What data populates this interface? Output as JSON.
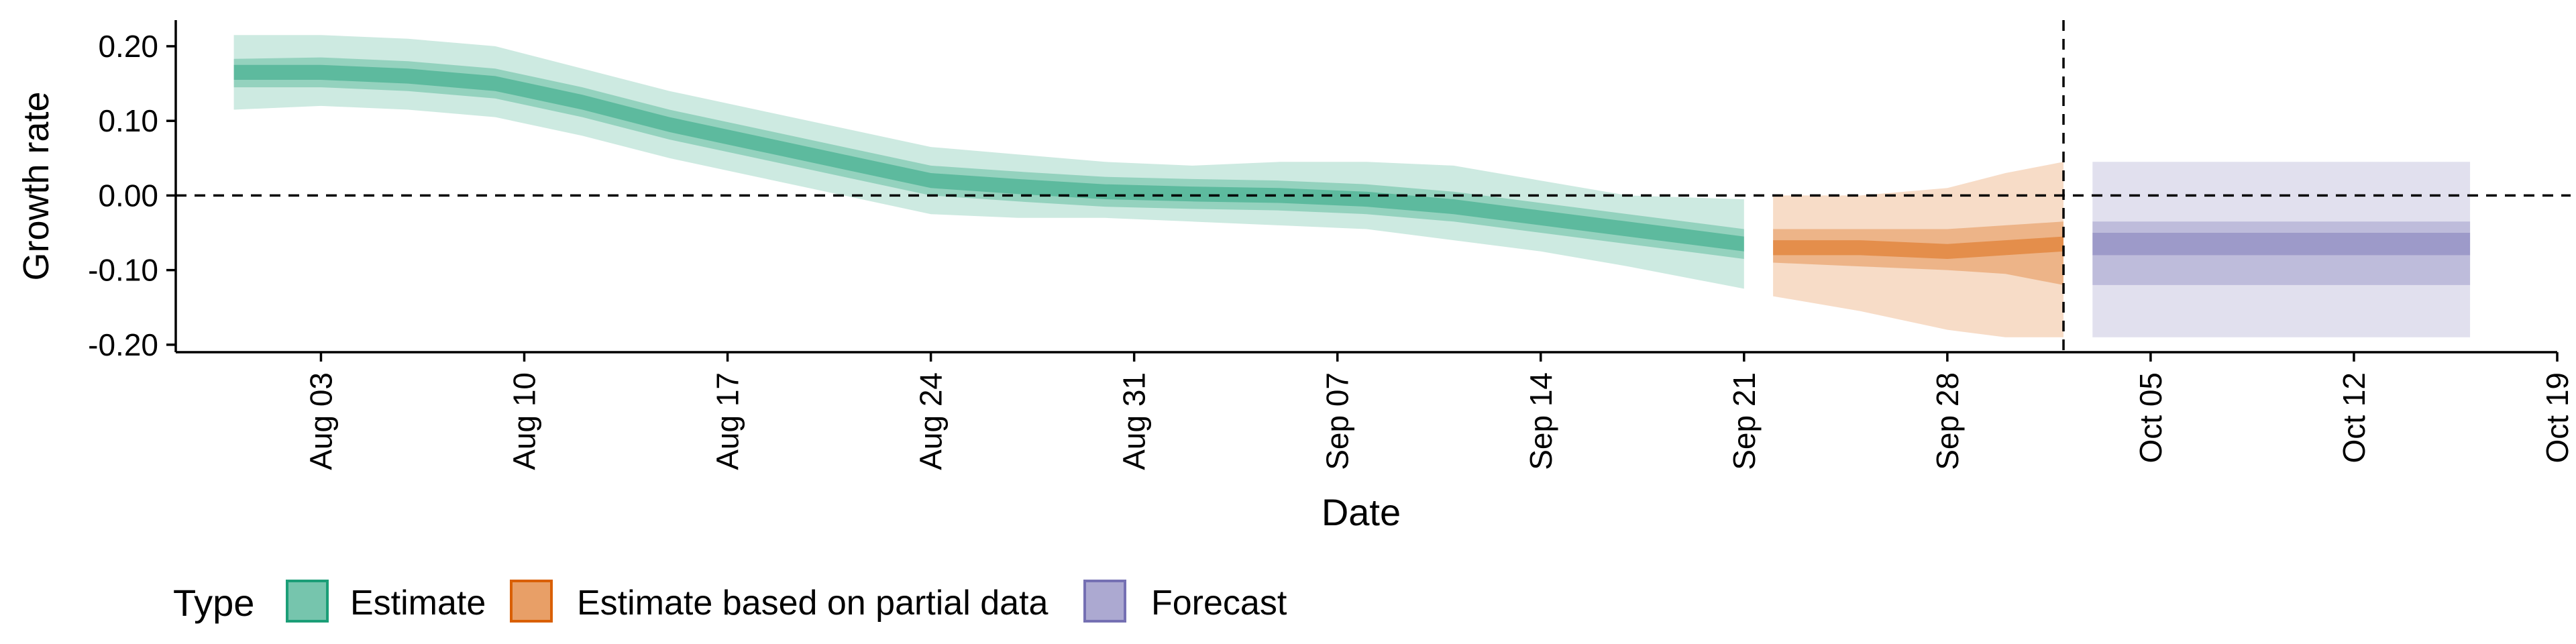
{
  "chart_data": {
    "type": "area",
    "title": "",
    "xlabel": "Date",
    "ylabel": "Growth rate",
    "x_axis": {
      "type": "date",
      "range": [
        "2020-07-29",
        "2020-10-19"
      ],
      "ticks": [
        "2020-08-03",
        "2020-08-10",
        "2020-08-17",
        "2020-08-24",
        "2020-08-31",
        "2020-09-07",
        "2020-09-14",
        "2020-09-21",
        "2020-09-28",
        "2020-10-05",
        "2020-10-12",
        "2020-10-19"
      ],
      "tick_labels": [
        "Aug 03",
        "Aug 10",
        "Aug 17",
        "Aug 24",
        "Aug 31",
        "Sep 07",
        "Sep 14",
        "Sep 21",
        "Sep 28",
        "Oct 05",
        "Oct 12",
        "Oct 19"
      ]
    },
    "y_axis": {
      "range": [
        -0.21,
        0.235
      ],
      "ticks": [
        -0.2,
        -0.1,
        0.0,
        0.1,
        0.2
      ],
      "tick_labels": [
        "-0.20",
        "-0.10",
        "0.00",
        "0.10",
        "0.20"
      ]
    },
    "reference_lines": {
      "horizontal_y": 0.0,
      "vertical_x": "2020-10-02",
      "style": "dashed"
    },
    "grid": false,
    "legend": {
      "title": "Type",
      "position": "bottom",
      "entries": [
        "Estimate",
        "Estimate based on partial data",
        "Forecast"
      ]
    },
    "series": [
      {
        "name": "Estimate",
        "color": "#1b9e77",
        "points": [
          {
            "x": "2020-07-31",
            "median": 0.165,
            "lo20": 0.155,
            "hi20": 0.175,
            "lo50": 0.145,
            "hi50": 0.183,
            "lo90": 0.115,
            "hi90": 0.215
          },
          {
            "x": "2020-08-03",
            "median": 0.165,
            "lo20": 0.155,
            "hi20": 0.175,
            "lo50": 0.145,
            "hi50": 0.185,
            "lo90": 0.12,
            "hi90": 0.215
          },
          {
            "x": "2020-08-06",
            "median": 0.16,
            "lo20": 0.15,
            "hi20": 0.17,
            "lo50": 0.14,
            "hi50": 0.18,
            "lo90": 0.115,
            "hi90": 0.21
          },
          {
            "x": "2020-08-09",
            "median": 0.15,
            "lo20": 0.14,
            "hi20": 0.16,
            "lo50": 0.13,
            "hi50": 0.17,
            "lo90": 0.105,
            "hi90": 0.2
          },
          {
            "x": "2020-08-12",
            "median": 0.125,
            "lo20": 0.115,
            "hi20": 0.135,
            "lo50": 0.105,
            "hi50": 0.145,
            "lo90": 0.08,
            "hi90": 0.17
          },
          {
            "x": "2020-08-15",
            "median": 0.095,
            "lo20": 0.085,
            "hi20": 0.105,
            "lo50": 0.075,
            "hi50": 0.115,
            "lo90": 0.05,
            "hi90": 0.14
          },
          {
            "x": "2020-08-18",
            "median": 0.07,
            "lo20": 0.06,
            "hi20": 0.08,
            "lo50": 0.05,
            "hi50": 0.09,
            "lo90": 0.025,
            "hi90": 0.115
          },
          {
            "x": "2020-08-21",
            "median": 0.045,
            "lo20": 0.035,
            "hi20": 0.055,
            "lo50": 0.025,
            "hi50": 0.065,
            "lo90": 0.0,
            "hi90": 0.09
          },
          {
            "x": "2020-08-24",
            "median": 0.02,
            "lo20": 0.01,
            "hi20": 0.03,
            "lo50": 0.0,
            "hi50": 0.04,
            "lo90": -0.025,
            "hi90": 0.065
          },
          {
            "x": "2020-08-27",
            "median": 0.012,
            "lo20": 0.002,
            "hi20": 0.022,
            "lo50": -0.008,
            "hi50": 0.032,
            "lo90": -0.03,
            "hi90": 0.055
          },
          {
            "x": "2020-08-30",
            "median": 0.005,
            "lo20": -0.005,
            "hi20": 0.015,
            "lo50": -0.015,
            "hi50": 0.025,
            "lo90": -0.03,
            "hi90": 0.045
          },
          {
            "x": "2020-09-02",
            "median": 0.002,
            "lo20": -0.008,
            "hi20": 0.012,
            "lo50": -0.018,
            "hi50": 0.022,
            "lo90": -0.035,
            "hi90": 0.04
          },
          {
            "x": "2020-09-05",
            "median": 0.0,
            "lo20": -0.01,
            "hi20": 0.01,
            "lo50": -0.02,
            "hi50": 0.02,
            "lo90": -0.04,
            "hi90": 0.045
          },
          {
            "x": "2020-09-08",
            "median": -0.005,
            "lo20": -0.015,
            "hi20": 0.005,
            "lo50": -0.025,
            "hi50": 0.015,
            "lo90": -0.045,
            "hi90": 0.045
          },
          {
            "x": "2020-09-11",
            "median": -0.015,
            "lo20": -0.025,
            "hi20": -0.005,
            "lo50": -0.035,
            "hi50": 0.005,
            "lo90": -0.06,
            "hi90": 0.04
          },
          {
            "x": "2020-09-14",
            "median": -0.03,
            "lo20": -0.04,
            "hi20": -0.02,
            "lo50": -0.05,
            "hi50": -0.01,
            "lo90": -0.075,
            "hi90": 0.02
          },
          {
            "x": "2020-09-17",
            "median": -0.045,
            "lo20": -0.055,
            "hi20": -0.035,
            "lo50": -0.065,
            "hi50": -0.025,
            "lo90": -0.095,
            "hi90": 0.0
          },
          {
            "x": "2020-09-21",
            "median": -0.065,
            "lo20": -0.075,
            "hi20": -0.055,
            "lo50": -0.085,
            "hi50": -0.045,
            "lo90": -0.125,
            "hi90": -0.005
          }
        ]
      },
      {
        "name": "Estimate based on partial data",
        "color": "#d95f02",
        "points": [
          {
            "x": "2020-09-22",
            "median": -0.07,
            "lo20": -0.08,
            "hi20": -0.06,
            "lo50": -0.09,
            "hi50": -0.045,
            "lo90": -0.135,
            "hi90": 0.0
          },
          {
            "x": "2020-09-25",
            "median": -0.07,
            "lo20": -0.08,
            "hi20": -0.06,
            "lo50": -0.095,
            "hi50": -0.045,
            "lo90": -0.155,
            "hi90": 0.0
          },
          {
            "x": "2020-09-28",
            "median": -0.075,
            "lo20": -0.085,
            "hi20": -0.065,
            "lo50": -0.1,
            "hi50": -0.045,
            "lo90": -0.18,
            "hi90": 0.01
          },
          {
            "x": "2020-09-30",
            "median": -0.07,
            "lo20": -0.08,
            "hi20": -0.06,
            "lo50": -0.105,
            "hi50": -0.04,
            "lo90": -0.19,
            "hi90": 0.03
          },
          {
            "x": "2020-10-02",
            "median": -0.065,
            "lo20": -0.075,
            "hi20": -0.055,
            "lo50": -0.12,
            "hi50": -0.035,
            "lo90": -0.19,
            "hi90": 0.045
          }
        ]
      },
      {
        "name": "Forecast",
        "color": "#7570b3",
        "points": [
          {
            "x": "2020-10-03",
            "median": -0.065,
            "lo20": -0.08,
            "hi20": -0.05,
            "lo50": -0.12,
            "hi50": -0.035,
            "lo90": -0.19,
            "hi90": 0.045
          },
          {
            "x": "2020-10-16",
            "median": -0.065,
            "lo20": -0.08,
            "hi20": -0.05,
            "lo50": -0.12,
            "hi50": -0.035,
            "lo90": -0.19,
            "hi90": 0.045
          }
        ]
      }
    ]
  }
}
